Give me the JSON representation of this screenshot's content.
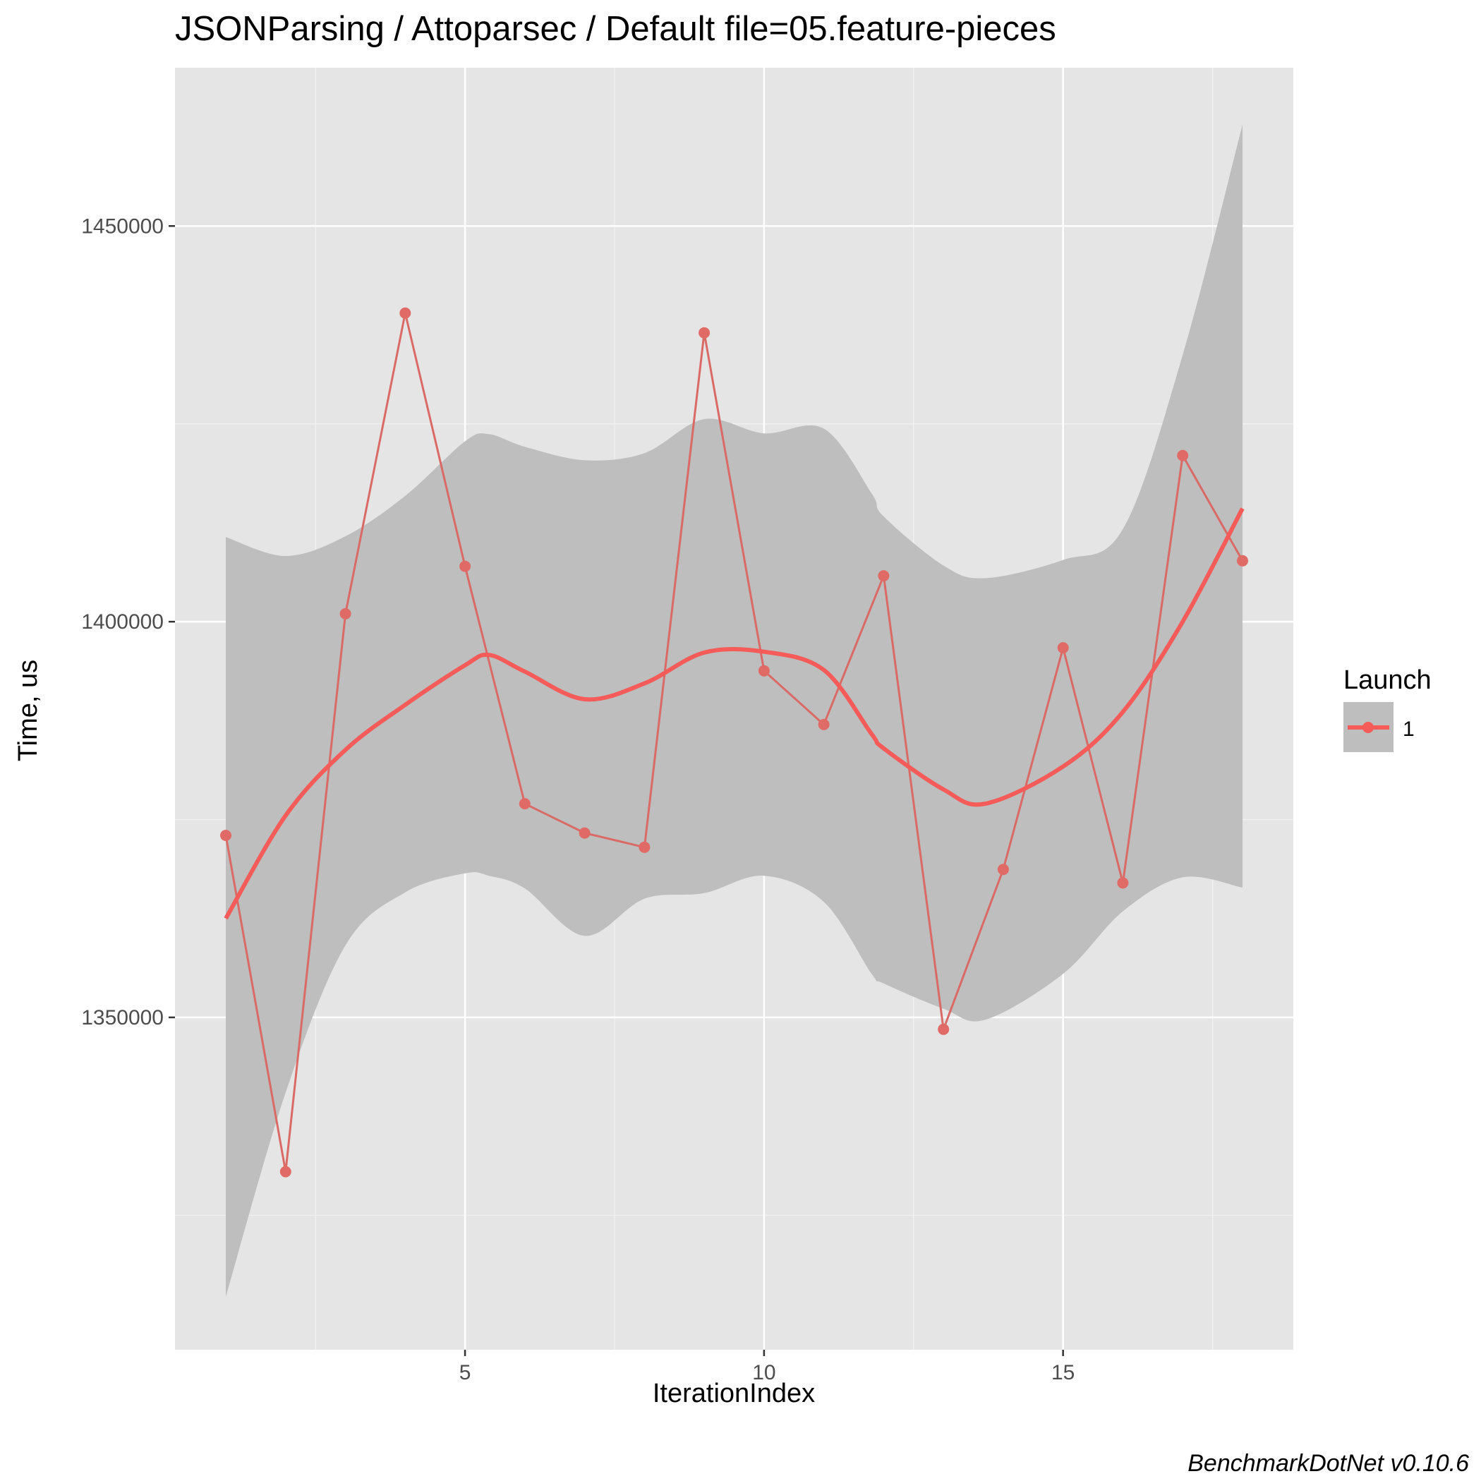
{
  "chart_data": {
    "type": "line",
    "title": "JSONParsing / Attoparsec / Default file=05.feature-pieces",
    "xlabel": "IterationIndex",
    "ylabel": "Time, us",
    "xlim": [
      0.15,
      18.85
    ],
    "ylim": [
      1308000,
      1470000
    ],
    "x_ticks": [
      5,
      10,
      15
    ],
    "x_tick_labels": [
      "5",
      "10",
      "15"
    ],
    "y_ticks": [
      1350000,
      1400000,
      1450000
    ],
    "y_tick_labels": [
      "1350000",
      "1400000",
      "1450000"
    ],
    "grid": true,
    "legend": {
      "title": "Launch",
      "position": "right",
      "entries": [
        "1"
      ]
    },
    "colors": {
      "series": "#f8766d",
      "panel": "#e5e5e5",
      "band": "#bebebe"
    },
    "series": [
      {
        "name": "1",
        "x": [
          1,
          2,
          3,
          4,
          5,
          6,
          7,
          8,
          9,
          10,
          11,
          12,
          13,
          14,
          15,
          16,
          17,
          18
        ],
        "values": [
          1373000,
          1330500,
          1401000,
          1439000,
          1407000,
          1377000,
          1373300,
          1371500,
          1436500,
          1393800,
          1387000,
          1405800,
          1348500,
          1368700,
          1396700,
          1367000,
          1421000,
          1407700
        ]
      }
    ],
    "smooth": {
      "x": [
        1,
        2,
        3,
        4,
        5,
        5.4,
        6,
        7,
        8,
        9,
        10,
        11,
        11.8,
        12,
        13,
        13.7,
        15,
        16,
        17,
        18
      ],
      "values": [
        1362500,
        1375500,
        1383800,
        1389500,
        1394500,
        1395800,
        1393700,
        1390200,
        1392200,
        1396100,
        1396200,
        1393900,
        1385800,
        1384000,
        1378800,
        1377000,
        1381700,
        1388600,
        1400000,
        1414300
      ],
      "upper": [
        1410700,
        1408300,
        1410800,
        1415900,
        1422800,
        1423700,
        1422100,
        1420400,
        1421300,
        1425600,
        1423800,
        1424400,
        1416200,
        1413300,
        1407100,
        1405500,
        1407800,
        1411700,
        1433700,
        1462800
      ],
      "lower": [
        1314700,
        1340500,
        1359100,
        1365800,
        1368200,
        1367900,
        1366300,
        1360300,
        1365000,
        1365700,
        1367900,
        1364600,
        1355500,
        1354300,
        1351100,
        1349700,
        1355500,
        1363400,
        1367700,
        1366400
      ]
    },
    "caption": "BenchmarkDotNet v0.10.6"
  }
}
